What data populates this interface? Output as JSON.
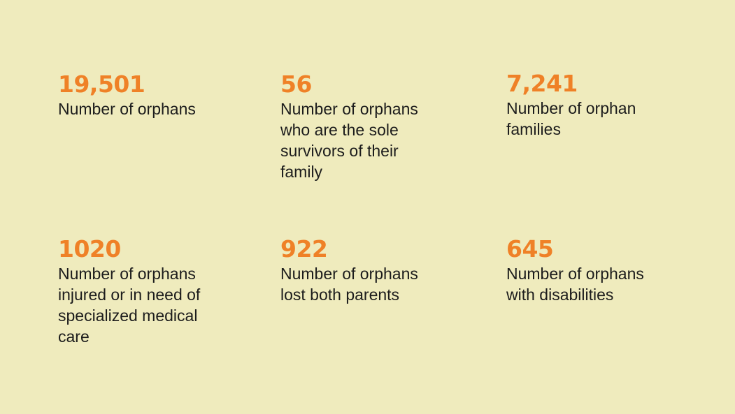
{
  "colors": {
    "background": "#efebbd",
    "number": "#ef8127",
    "text": "#1c1c1c"
  },
  "stats": [
    {
      "value": "19,501",
      "label": "Number of orphans"
    },
    {
      "value": "56",
      "label": "Number of orphans\nwho are the sole\nsurvivors of their\nfamily"
    },
    {
      "value": "7,241",
      "label": "Number of orphan\nfamilies"
    },
    {
      "value": "1020",
      "label": "Number of orphans\ninjured or in need of\nspecialized medical\ncare"
    },
    {
      "value": "922",
      "label": "Number of orphans\nlost both parents"
    },
    {
      "value": "645",
      "label": "Number of orphans\nwith disabilities"
    }
  ]
}
